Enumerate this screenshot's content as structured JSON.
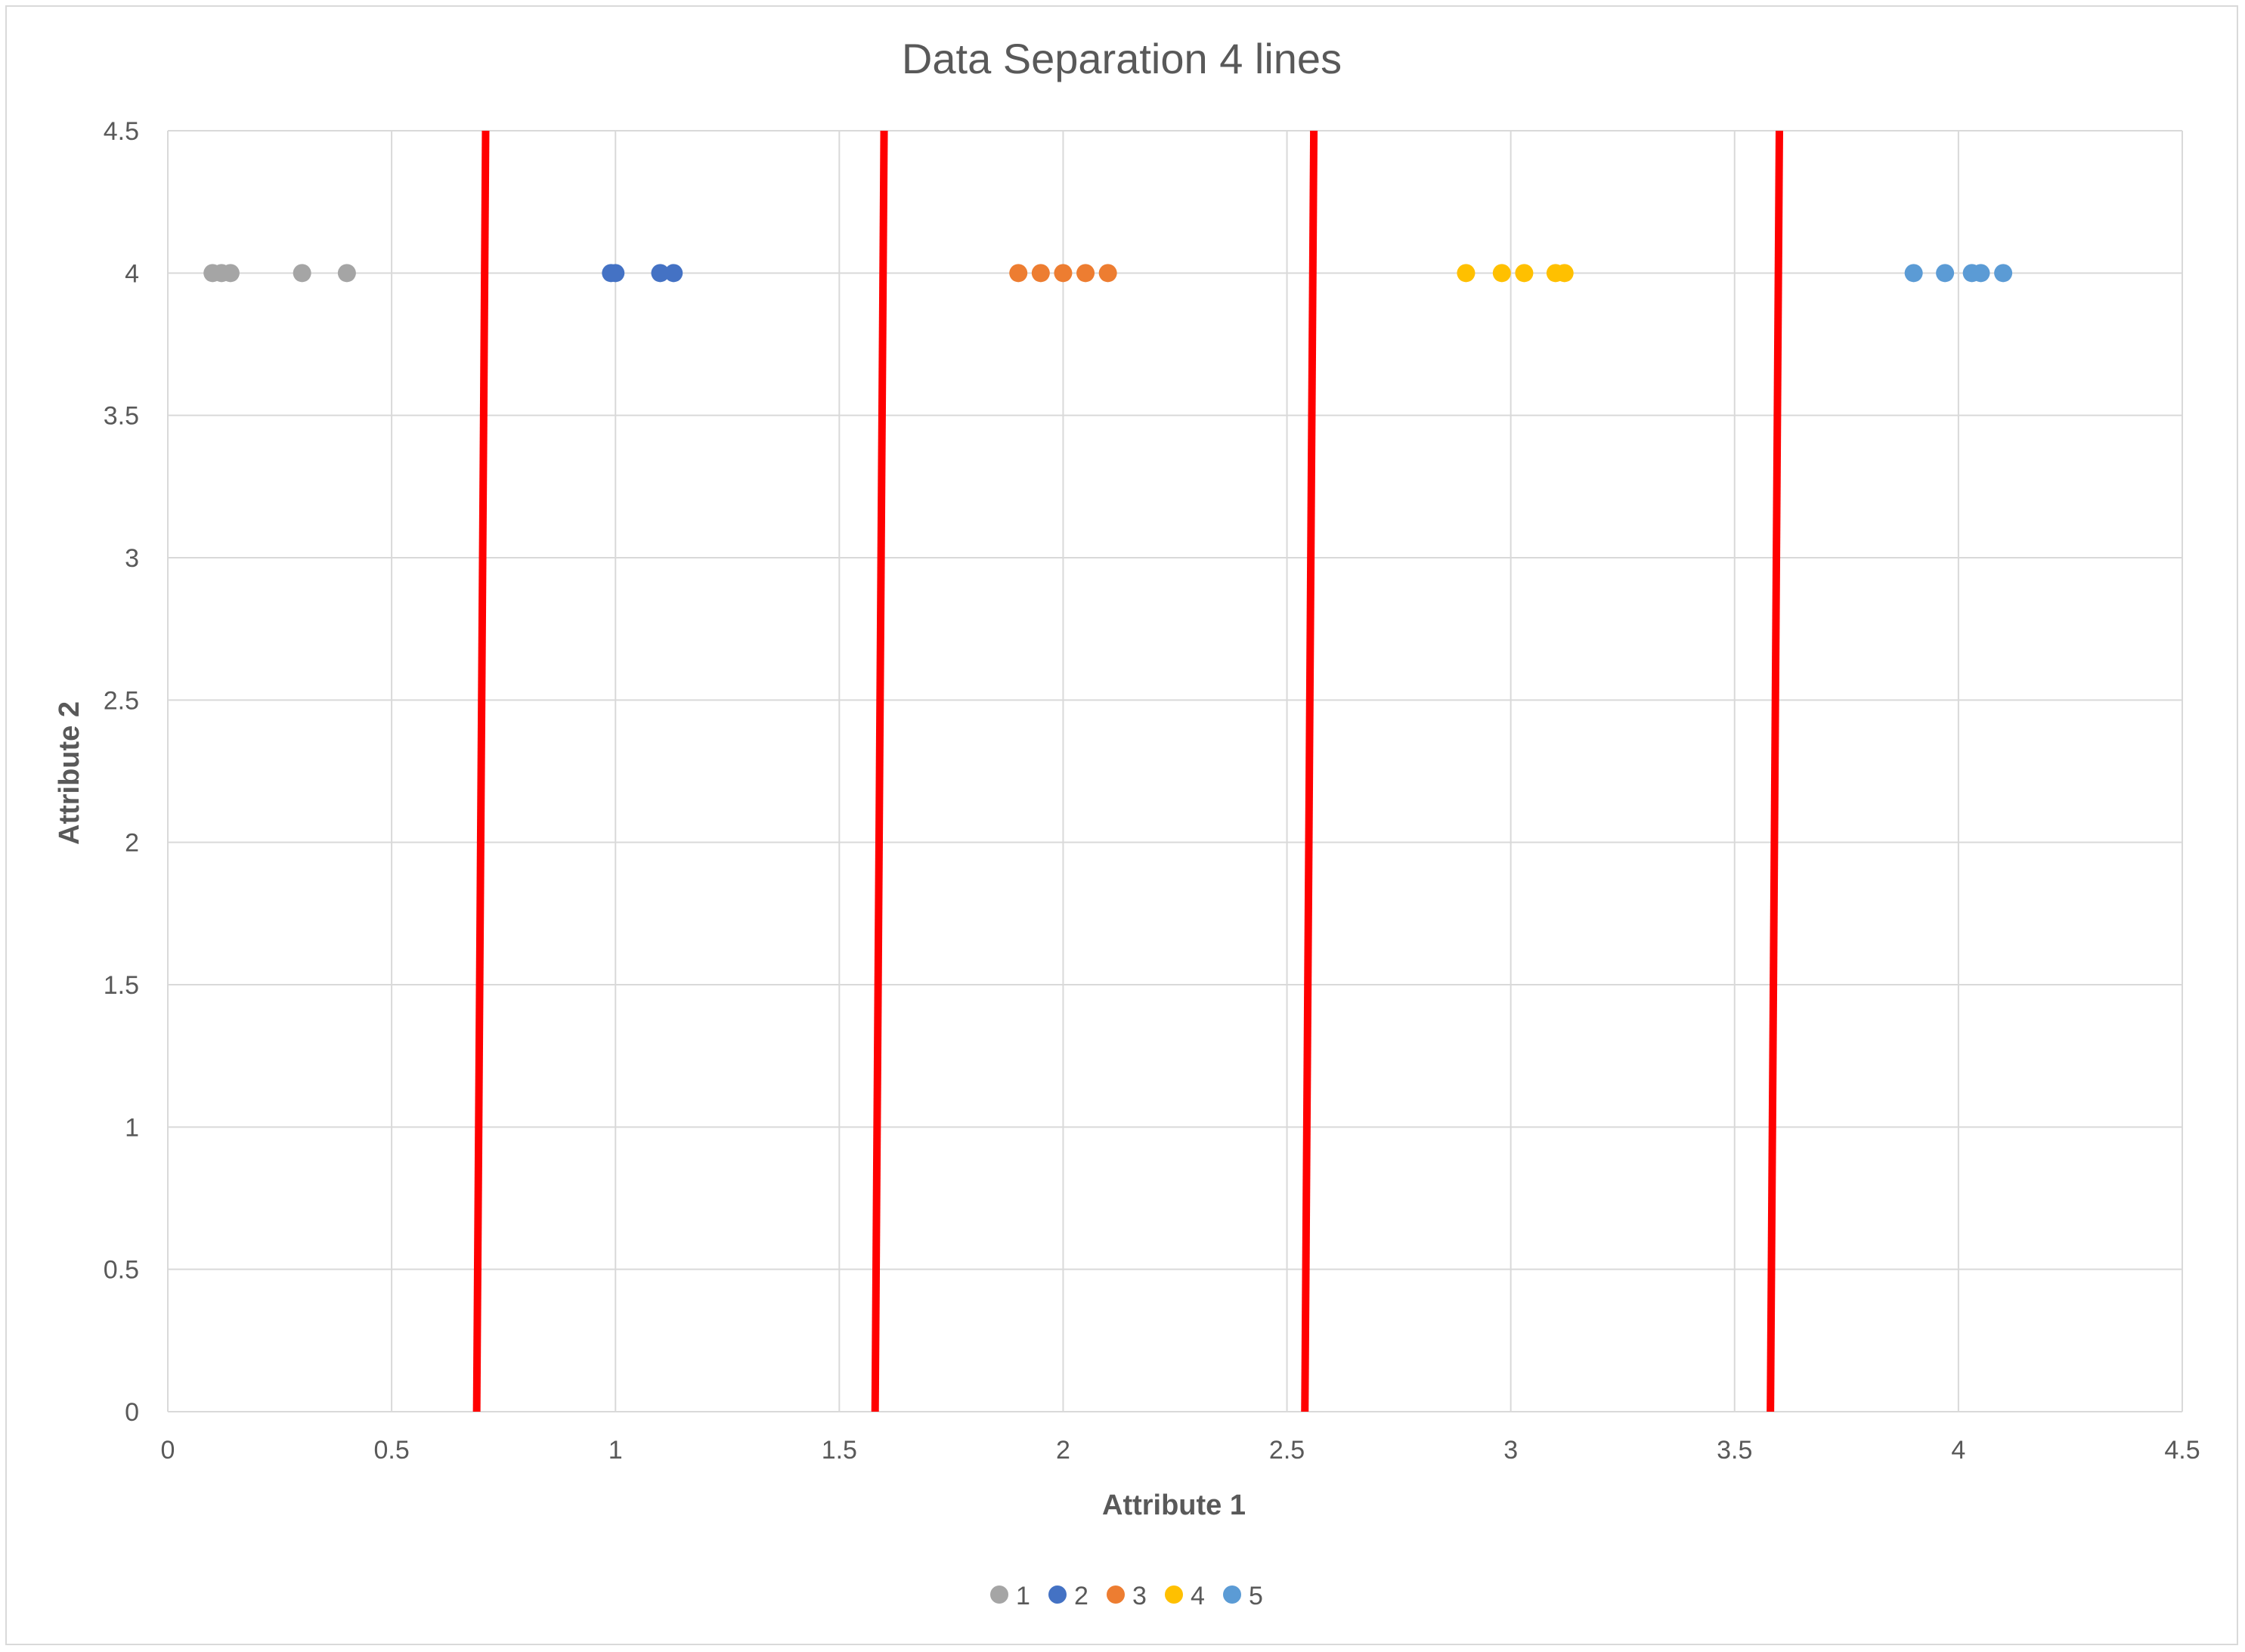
{
  "chart_data": {
    "type": "scatter",
    "title": "Data Separation 4 lines",
    "xlabel": "Attribute 1",
    "ylabel": "Attribute 2",
    "xlim": [
      0,
      4.5
    ],
    "ylim": [
      0,
      4.5
    ],
    "x_ticks": [
      "0",
      "0.5",
      "1",
      "1.5",
      "2",
      "2.5",
      "3",
      "3.5",
      "4",
      "4.5"
    ],
    "y_ticks": [
      "0",
      "0.5",
      "1",
      "1.5",
      "2",
      "2.5",
      "3",
      "3.5",
      "4",
      "4.5"
    ],
    "grid": true,
    "legend_position": "bottom",
    "series": [
      {
        "name": "1",
        "color": "#a5a5a5",
        "points": [
          [
            0.1,
            4
          ],
          [
            0.12,
            4
          ],
          [
            0.14,
            4
          ],
          [
            0.3,
            4
          ],
          [
            0.4,
            4
          ]
        ]
      },
      {
        "name": "2",
        "color": "#4472c4",
        "points": [
          [
            0.99,
            4
          ],
          [
            1.0,
            4
          ],
          [
            1.1,
            4
          ],
          [
            1.13,
            4
          ]
        ]
      },
      {
        "name": "3",
        "color": "#ed7d31",
        "points": [
          [
            1.9,
            4
          ],
          [
            1.95,
            4
          ],
          [
            2.0,
            4
          ],
          [
            2.05,
            4
          ],
          [
            2.1,
            4
          ]
        ]
      },
      {
        "name": "4",
        "color": "#ffc000",
        "points": [
          [
            2.9,
            4
          ],
          [
            2.98,
            4
          ],
          [
            3.03,
            4
          ],
          [
            3.1,
            4
          ],
          [
            3.12,
            4
          ]
        ]
      },
      {
        "name": "5",
        "color": "#5b9bd5",
        "points": [
          [
            3.9,
            4
          ],
          [
            3.97,
            4
          ],
          [
            4.03,
            4
          ],
          [
            4.05,
            4
          ],
          [
            4.1,
            4
          ]
        ]
      }
    ],
    "separator_lines": {
      "color": "#ff0000",
      "lines": [
        [
          [
            0.69,
            0
          ],
          [
            0.71,
            4.5
          ]
        ],
        [
          [
            1.58,
            0
          ],
          [
            1.6,
            4.5
          ]
        ],
        [
          [
            2.54,
            0
          ],
          [
            2.56,
            4.5
          ]
        ],
        [
          [
            3.58,
            0
          ],
          [
            3.6,
            4.5
          ]
        ]
      ]
    }
  }
}
